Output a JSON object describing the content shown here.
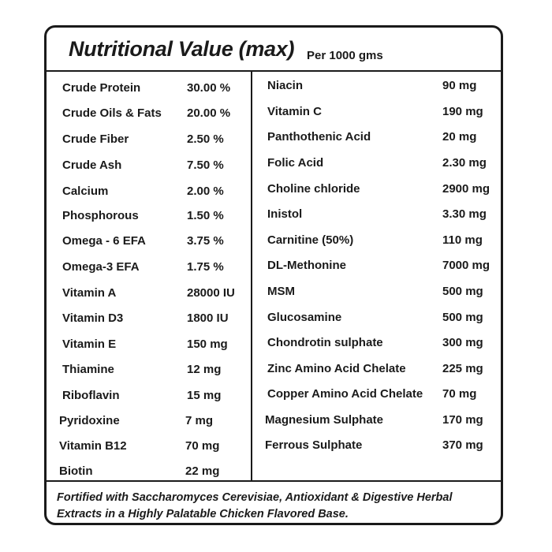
{
  "header": {
    "title": "Nutritional Value (max)",
    "subtitle": "Per 1000 gms"
  },
  "left_column": [
    {
      "name": "Crude Protein",
      "value": "30.00 %"
    },
    {
      "name": "Crude Oils & Fats",
      "value": "20.00 %"
    },
    {
      "name": "Crude Fiber",
      "value": "2.50 %"
    },
    {
      "name": "Crude Ash",
      "value": "7.50 %"
    },
    {
      "name": "Calcium",
      "value": "2.00 %"
    },
    {
      "name": "Phosphorous",
      "value": "1.50 %"
    },
    {
      "name": "Omega - 6 EFA",
      "value": "3.75 %"
    },
    {
      "name": "Omega-3 EFA",
      "value": "1.75 %"
    },
    {
      "name": "Vitamin A",
      "value": "28000 IU"
    },
    {
      "name": "Vitamin D3",
      "value": "1800 IU"
    },
    {
      "name": "Vitamin E",
      "value": "150 mg"
    },
    {
      "name": "Thiamine",
      "value": "12 mg"
    },
    {
      "name": "Riboflavin",
      "value": "15 mg"
    },
    {
      "name": "Pyridoxine",
      "value": "7 mg"
    },
    {
      "name": "Vitamin B12",
      "value": "70 mg"
    },
    {
      "name": "Biotin",
      "value": "22 mg"
    }
  ],
  "right_column": [
    {
      "name": "Niacin",
      "value": "90 mg"
    },
    {
      "name": "Vitamin C",
      "value": "190 mg"
    },
    {
      "name": "Panthothenic Acid",
      "value": "20 mg"
    },
    {
      "name": "Folic Acid",
      "value": "2.30 mg"
    },
    {
      "name": "Choline chloride",
      "value": "2900 mg"
    },
    {
      "name": "Inistol",
      "value": "3.30 mg"
    },
    {
      "name": "Carnitine (50%)",
      "value": "110 mg"
    },
    {
      "name": "DL-Methonine",
      "value": "7000 mg"
    },
    {
      "name": "MSM",
      "value": "500 mg"
    },
    {
      "name": "Glucosamine",
      "value": "500 mg"
    },
    {
      "name": "Chondrotin sulphate",
      "value": "300 mg"
    },
    {
      "name": "Zinc Amino Acid Chelate",
      "value": "225 mg"
    },
    {
      "name": "Copper Amino Acid Chelate",
      "value": "70 mg"
    },
    {
      "name": "Magnesium Sulphate",
      "value": "170 mg"
    },
    {
      "name": "Ferrous Sulphate",
      "value": "370 mg"
    }
  ],
  "footer": {
    "text": "Fortified with Saccharomyces Cerevisiae, Antioxidant & Digestive Herbal Extracts in a Highly Palatable Chicken Flavored Base."
  }
}
